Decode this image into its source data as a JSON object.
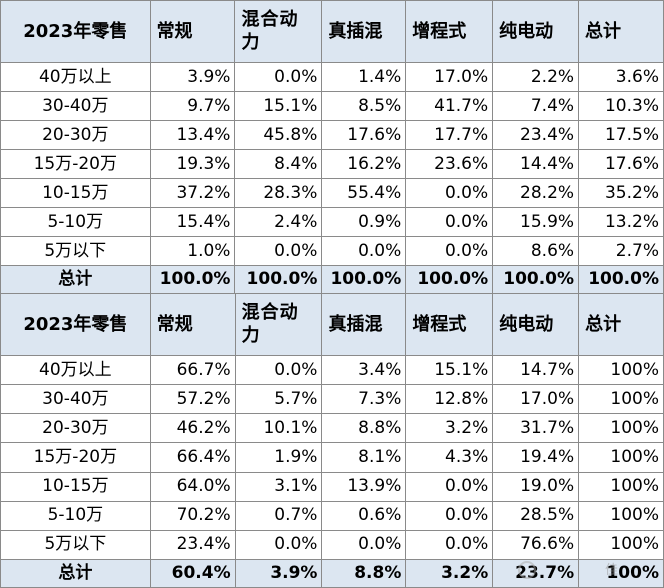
{
  "columns": [
    "常规",
    "混合动力",
    "真插混",
    "增程式",
    "纯电动",
    "总计"
  ],
  "tables": [
    {
      "corner": "2023年零售",
      "rows": [
        {
          "label": "40万以上",
          "values": [
            "3.9%",
            "0.0%",
            "1.4%",
            "17.0%",
            "2.2%",
            "3.6%"
          ]
        },
        {
          "label": "30-40万",
          "values": [
            "9.7%",
            "15.1%",
            "8.5%",
            "41.7%",
            "7.4%",
            "10.3%"
          ]
        },
        {
          "label": "20-30万",
          "values": [
            "13.4%",
            "45.8%",
            "17.6%",
            "17.7%",
            "23.4%",
            "17.5%"
          ]
        },
        {
          "label": "15万-20万",
          "values": [
            "19.3%",
            "8.4%",
            "16.2%",
            "23.6%",
            "14.4%",
            "17.6%"
          ]
        },
        {
          "label": "10-15万",
          "values": [
            "37.2%",
            "28.3%",
            "55.4%",
            "0.0%",
            "28.2%",
            "35.2%"
          ]
        },
        {
          "label": "5-10万",
          "values": [
            "15.4%",
            "2.4%",
            "0.9%",
            "0.0%",
            "15.9%",
            "13.2%"
          ]
        },
        {
          "label": "5万以下",
          "values": [
            "1.0%",
            "0.0%",
            "0.0%",
            "0.0%",
            "8.6%",
            "2.7%"
          ]
        }
      ],
      "total": {
        "label": "总计",
        "values": [
          "100.0%",
          "100.0%",
          "100.0%",
          "100.0%",
          "100.0%",
          "100.0%"
        ]
      }
    },
    {
      "corner": "2023年零售",
      "rows": [
        {
          "label": "40万以上",
          "values": [
            "66.7%",
            "0.0%",
            "3.4%",
            "15.1%",
            "14.7%",
            "100%"
          ]
        },
        {
          "label": "30-40万",
          "values": [
            "57.2%",
            "5.7%",
            "7.3%",
            "12.8%",
            "17.0%",
            "100%"
          ]
        },
        {
          "label": "20-30万",
          "values": [
            "46.2%",
            "10.1%",
            "8.8%",
            "3.2%",
            "31.7%",
            "100%"
          ]
        },
        {
          "label": "15万-20万",
          "values": [
            "66.4%",
            "1.9%",
            "8.1%",
            "4.3%",
            "19.4%",
            "100%"
          ]
        },
        {
          "label": "10-15万",
          "values": [
            "64.0%",
            "3.1%",
            "13.9%",
            "0.0%",
            "19.0%",
            "100%"
          ]
        },
        {
          "label": "5-10万",
          "values": [
            "70.2%",
            "0.7%",
            "0.6%",
            "0.0%",
            "28.5%",
            "100%"
          ]
        },
        {
          "label": "5万以下",
          "values": [
            "23.4%",
            "0.0%",
            "0.0%",
            "0.0%",
            "76.6%",
            "100%"
          ]
        }
      ],
      "total": {
        "label": "总计",
        "values": [
          "60.4%",
          "3.9%",
          "8.8%",
          "3.2%",
          "23.7%",
          "100%"
        ]
      }
    }
  ],
  "watermark": "佳"
}
